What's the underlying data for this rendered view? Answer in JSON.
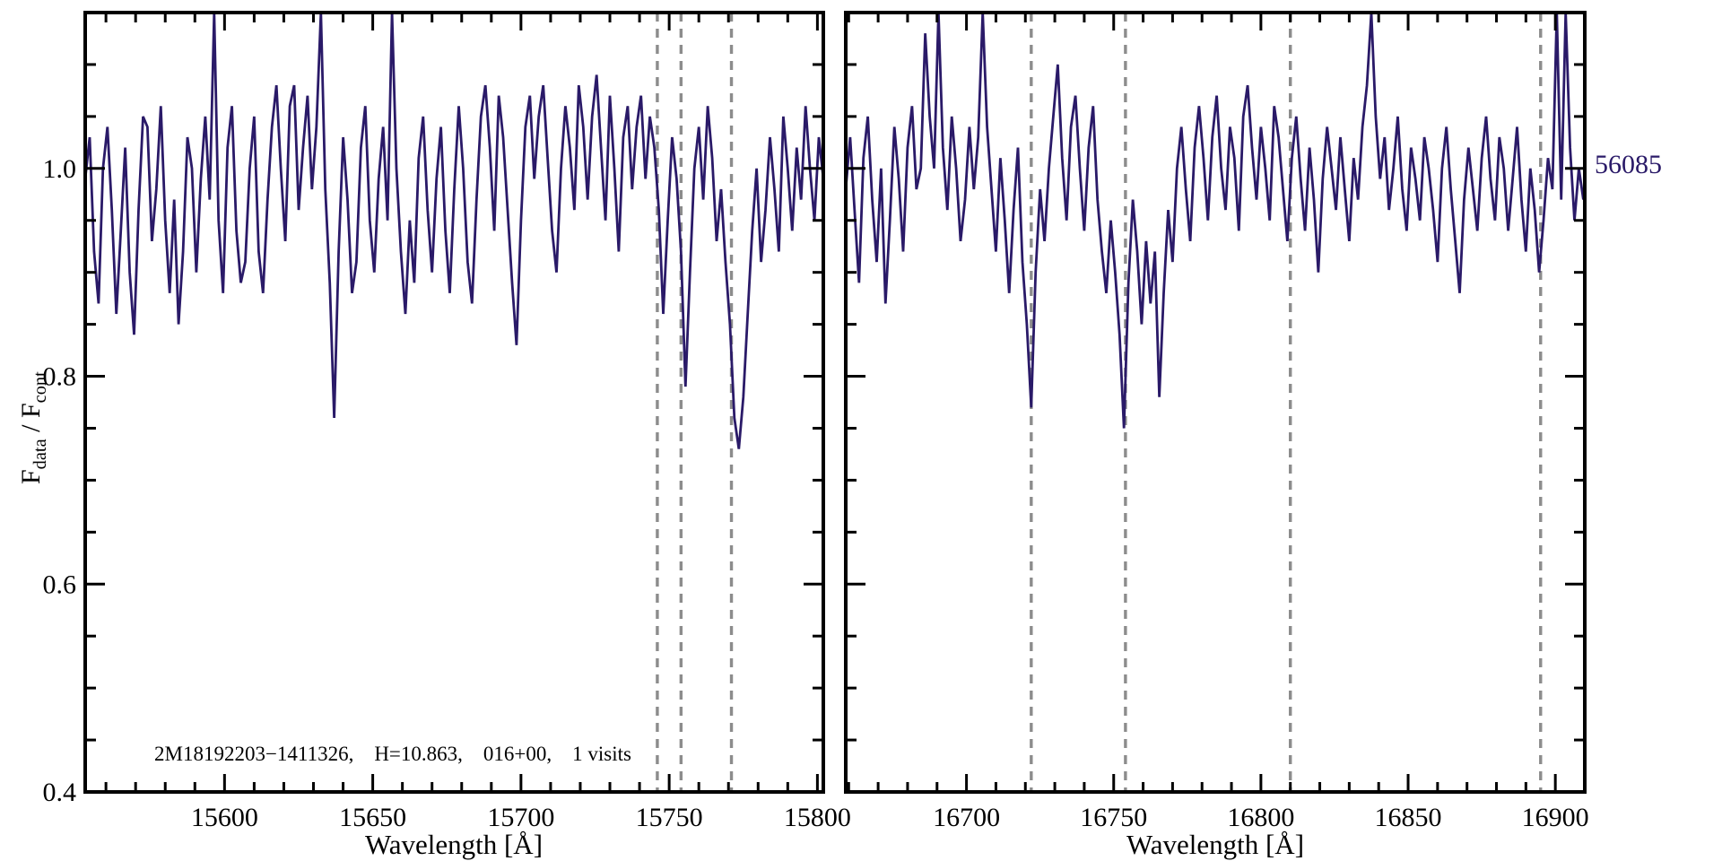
{
  "labels": {
    "x_label_left": "Wavelength [Å]",
    "x_label_right": "Wavelength [Å]",
    "y_f1": "F",
    "y_sub1": "data",
    "y_mid": " / F",
    "y_sub2": "cont",
    "annotation": "2M18192203−1411326,    H=10.863,    016+00,    1 visits",
    "mjd": "56085"
  },
  "colors": {
    "spectrum": "#2a1a68",
    "mjd_text": "#2a1a68",
    "dashed_line": "#8c8c8c",
    "axis": "#000000",
    "background": "#ffffff"
  },
  "chart_data": {
    "type": "line",
    "title": "",
    "ylabel": "F_data / F_cont",
    "ylim": [
      0.4,
      1.15
    ],
    "yticks": [
      0.4,
      0.6,
      0.8,
      1.0
    ],
    "ytick_labels": [
      "0.4",
      "0.6",
      "0.8",
      "1.0"
    ],
    "y_minor_step": 0.05,
    "x_minor_step": 10,
    "annotation": "2M18192203−1411326,    H=10.863,    016+00,    1 visits",
    "mjd_label": "56085",
    "legend_position": "none",
    "grid": false,
    "panels": [
      {
        "name": "blue-chip-window",
        "xlabel": "Wavelength [Å]",
        "xlim": [
          15553,
          15802
        ],
        "xticks": [
          15600,
          15650,
          15700,
          15750,
          15800
        ],
        "xtick_labels": [
          "15600",
          "15650",
          "15700",
          "15750",
          "15800"
        ],
        "dashed_lines": [
          15746,
          15754,
          15771
        ],
        "series": {
          "name": "normalized flux",
          "x0": 15553,
          "dx": 1.5,
          "values": [
            0.99,
            1.03,
            0.92,
            0.87,
            1.0,
            1.04,
            0.96,
            0.86,
            0.94,
            1.02,
            0.9,
            0.84,
            0.96,
            1.05,
            1.04,
            0.93,
            0.98,
            1.06,
            0.95,
            0.88,
            0.97,
            0.85,
            0.92,
            1.03,
            1.0,
            0.9,
            0.99,
            1.05,
            0.97,
            1.16,
            0.95,
            0.88,
            1.02,
            1.06,
            0.94,
            0.89,
            0.91,
            1.0,
            1.05,
            0.92,
            0.88,
            0.97,
            1.04,
            1.08,
            1.0,
            0.93,
            1.06,
            1.08,
            0.96,
            1.02,
            1.07,
            0.98,
            1.04,
            1.16,
            0.98,
            0.89,
            0.76,
            0.92,
            1.03,
            0.97,
            0.88,
            0.91,
            1.02,
            1.06,
            0.95,
            0.9,
            0.99,
            1.04,
            0.95,
            1.16,
            1.0,
            0.92,
            0.86,
            0.95,
            0.89,
            1.01,
            1.05,
            0.96,
            0.9,
            0.99,
            1.04,
            0.94,
            0.88,
            0.98,
            1.06,
            1.0,
            0.91,
            0.87,
            0.97,
            1.05,
            1.08,
            1.02,
            0.94,
            1.07,
            1.03,
            0.96,
            0.89,
            0.83,
            0.95,
            1.04,
            1.07,
            0.99,
            1.05,
            1.08,
            1.01,
            0.94,
            0.9,
            1.0,
            1.06,
            1.02,
            0.96,
            1.08,
            1.04,
            0.97,
            1.05,
            1.09,
            1.02,
            0.95,
            1.07,
            1.0,
            0.92,
            1.03,
            1.06,
            0.98,
            1.04,
            1.07,
            0.99,
            1.05,
            1.02,
            0.96,
            0.86,
            0.95,
            1.03,
            0.99,
            0.92,
            0.79,
            0.9,
            1.0,
            1.04,
            0.97,
            1.06,
            1.01,
            0.93,
            0.98,
            0.91,
            0.85,
            0.76,
            0.73,
            0.78,
            0.86,
            0.94,
            1.0,
            0.91,
            0.96,
            1.03,
            0.98,
            0.92,
            1.05,
            1.0,
            0.94,
            1.02,
            0.97,
            1.06,
            1.0,
            0.95,
            1.03,
            0.99
          ]
        }
      },
      {
        "name": "red-chip-window",
        "xlabel": "Wavelength [Å]",
        "xlim": [
          16659,
          16910
        ],
        "xticks": [
          16700,
          16750,
          16800,
          16850,
          16900
        ],
        "xtick_labels": [
          "16700",
          "16750",
          "16800",
          "16850",
          "16900"
        ],
        "dashed_lines": [
          16722,
          16754,
          16810,
          16895
        ],
        "series": {
          "name": "normalized flux",
          "x0": 16659,
          "dx": 1.5,
          "values": [
            0.98,
            1.03,
            0.96,
            0.89,
            1.01,
            1.05,
            0.97,
            0.91,
            1.0,
            0.87,
            0.95,
            1.04,
            0.99,
            0.92,
            1.02,
            1.06,
            0.98,
            1.0,
            1.13,
            1.05,
            1.0,
            1.16,
            1.02,
            0.96,
            1.05,
            1.0,
            0.93,
            0.97,
            1.04,
            0.98,
            1.03,
            1.16,
            1.04,
            0.98,
            0.92,
            1.01,
            0.95,
            0.88,
            0.96,
            1.02,
            0.91,
            0.85,
            0.77,
            0.9,
            0.98,
            0.93,
            1.0,
            1.05,
            1.1,
            1.01,
            0.95,
            1.04,
            1.07,
            1.0,
            0.94,
            1.02,
            1.06,
            0.97,
            0.92,
            0.88,
            0.95,
            0.9,
            0.84,
            0.75,
            0.89,
            0.97,
            0.92,
            0.85,
            0.93,
            0.87,
            0.92,
            0.78,
            0.88,
            0.96,
            0.91,
            1.0,
            1.04,
            0.98,
            0.93,
            1.02,
            1.06,
            1.01,
            0.95,
            1.03,
            1.07,
            1.0,
            0.96,
            1.04,
            1.01,
            0.94,
            1.05,
            1.08,
            1.02,
            0.97,
            1.04,
            1.0,
            0.95,
            1.06,
            1.03,
            0.98,
            0.93,
            1.01,
            1.05,
            0.99,
            0.94,
            1.02,
            0.97,
            0.9,
            0.99,
            1.04,
            1.0,
            0.96,
            1.03,
            0.98,
            0.93,
            1.01,
            0.97,
            1.04,
            1.08,
            1.16,
            1.05,
            0.99,
            1.03,
            0.96,
            1.0,
            1.05,
            0.98,
            0.94,
            1.02,
            0.99,
            0.95,
            1.03,
            1.0,
            0.96,
            0.91,
            1.0,
            1.04,
            0.98,
            0.93,
            0.88,
            0.97,
            1.02,
            0.98,
            0.94,
            1.01,
            1.05,
            0.99,
            0.95,
            1.03,
            1.0,
            0.94,
            0.99,
            1.04,
            0.97,
            0.92,
            1.0,
            0.96,
            0.9,
            0.95,
            1.01,
            0.98,
            1.16,
            0.97,
            1.16,
            1.02,
            0.95,
            1.0,
            0.97
          ]
        }
      }
    ]
  }
}
